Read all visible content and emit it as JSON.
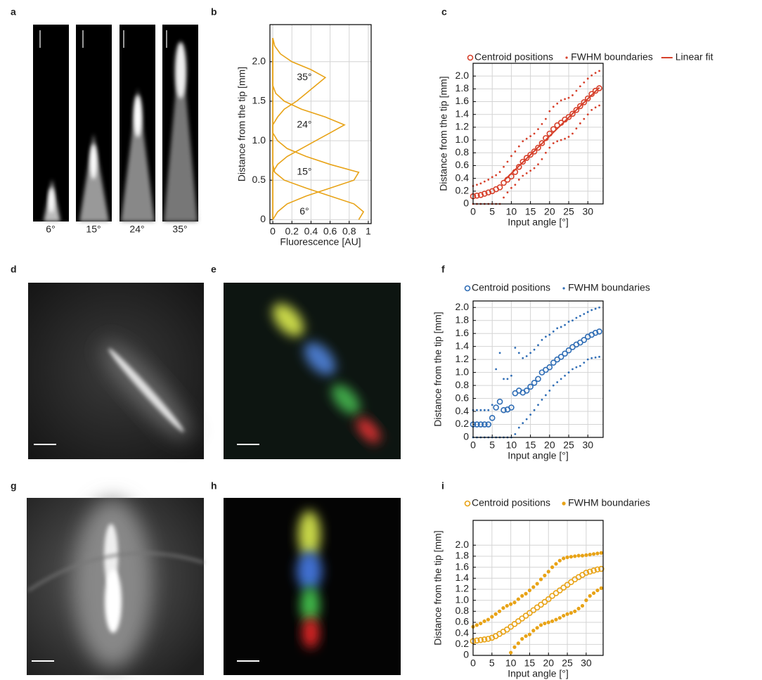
{
  "panel_letters": [
    "a",
    "b",
    "c",
    "d",
    "e",
    "f",
    "g",
    "h",
    "i"
  ],
  "image_strip_labels": [
    "6°",
    "15°",
    "24°",
    "35°"
  ],
  "chart_data": [
    {
      "type": "profile",
      "xlabel": "Fluorescence [AU]",
      "ylabel": "Distance from the tip [mm]",
      "y": [
        0,
        0.1,
        0.2,
        0.3,
        0.4,
        0.5,
        0.6,
        0.7,
        0.8,
        0.9,
        1,
        1.1,
        1.2,
        1.3,
        1.4,
        1.5,
        1.6,
        1.7,
        1.8,
        1.9,
        2,
        2.1,
        2.2,
        2.3
      ],
      "series": [
        {
          "name": "6°",
          "color": "#e8a317",
          "values": [
            0.9,
            0.95,
            0.85,
            0.6,
            0.35,
            0.12,
            0.02,
            0,
            0,
            0,
            0,
            0,
            0,
            0,
            0,
            0,
            0,
            0,
            0,
            0,
            0,
            0,
            0,
            0
          ]
        },
        {
          "name": "15°",
          "color": "#e8a317",
          "values": [
            0,
            0.05,
            0.15,
            0.35,
            0.6,
            0.85,
            0.9,
            0.6,
            0.35,
            0.15,
            0.05,
            0,
            0,
            0,
            0,
            0,
            0,
            0,
            0,
            0,
            0,
            0,
            0,
            0
          ]
        },
        {
          "name": "24°",
          "color": "#e8a317",
          "values": [
            0,
            0,
            0,
            0,
            0,
            0,
            0,
            0.05,
            0.15,
            0.3,
            0.45,
            0.6,
            0.75,
            0.55,
            0.3,
            0.12,
            0.03,
            0,
            0,
            0,
            0,
            0,
            0,
            0
          ]
        },
        {
          "name": "35°",
          "color": "#e8a317",
          "values": [
            0,
            0,
            0,
            0,
            0,
            0,
            0,
            0,
            0,
            0,
            0,
            0,
            0,
            0.05,
            0.12,
            0.25,
            0.35,
            0.45,
            0.55,
            0.4,
            0.2,
            0.08,
            0.02,
            0
          ]
        }
      ],
      "xlim": [
        -0.03,
        1.03
      ],
      "ylim": [
        -0.05,
        2.47
      ],
      "xticks": [
        0,
        0.2,
        0.4,
        0.6,
        0.8,
        1
      ],
      "yticks": [
        0,
        0.5,
        {
          "value": 1,
          "label": "1.0"
        },
        1.5,
        {
          "value": 2,
          "label": "2.0"
        }
      ],
      "grid": true
    },
    {
      "type": "scatter",
      "xlabel": "Input angle [°]",
      "ylabel": "Distance from the tip [mm]",
      "x": [
        0,
        1,
        2,
        3,
        4,
        5,
        6,
        7,
        8,
        9,
        10,
        11,
        12,
        13,
        14,
        15,
        16,
        17,
        18,
        19,
        20,
        21,
        22,
        23,
        24,
        25,
        26,
        27,
        28,
        29,
        30,
        31,
        32,
        33
      ],
      "series": [
        {
          "name": "Centroid positions",
          "color": "#d6402b",
          "marker": "open-circle",
          "values": [
            0.12,
            0.13,
            0.14,
            0.16,
            0.18,
            0.2,
            0.23,
            0.26,
            0.33,
            0.38,
            0.43,
            0.5,
            0.58,
            0.66,
            0.72,
            0.77,
            0.82,
            0.88,
            0.95,
            1.03,
            1.1,
            1.17,
            1.23,
            1.27,
            1.32,
            1.36,
            1.41,
            1.47,
            1.53,
            1.59,
            1.65,
            1.72,
            1.77,
            1.81
          ]
        },
        {
          "name": "FWHM boundaries",
          "color": "#d6402b",
          "marker": "dot",
          "upper": [
            0.28,
            0.3,
            0.32,
            0.35,
            0.38,
            0.42,
            0.45,
            0.5,
            0.58,
            0.66,
            0.75,
            0.82,
            0.9,
            0.98,
            1.02,
            1.06,
            1.1,
            1.17,
            1.25,
            1.33,
            1.45,
            1.52,
            1.57,
            1.62,
            1.64,
            1.66,
            1.7,
            1.77,
            1.84,
            1.9,
            1.96,
            2.01,
            2.05,
            2.08
          ],
          "lower": [
            0,
            0,
            0,
            0,
            0,
            0,
            0,
            0,
            0.1,
            0.18,
            0.25,
            0.3,
            0.38,
            0.44,
            0.48,
            0.52,
            0.56,
            0.62,
            0.7,
            0.8,
            0.88,
            0.95,
            0.98,
            1.0,
            1.02,
            1.05,
            1.1,
            1.18,
            1.26,
            1.33,
            1.4,
            1.47,
            1.51,
            1.54
          ]
        },
        {
          "name": "Linear fit",
          "color": "#d6402b",
          "marker": "line",
          "x": [
            8,
            33
          ],
          "values": [
            0.36,
            1.82
          ]
        }
      ],
      "xlim": [
        0,
        34
      ],
      "ylim": [
        0,
        2.2
      ],
      "xticks": [
        0,
        5,
        10,
        15,
        20,
        25,
        30
      ],
      "yticks": [
        0,
        0.2,
        0.4,
        0.6,
        0.8,
        {
          "value": 1,
          "label": "1.0"
        },
        1.2,
        1.4,
        1.6,
        1.8,
        {
          "value": 2,
          "label": "2.0"
        }
      ],
      "grid": true
    },
    {
      "type": "scatter",
      "xlabel": "Input angle [°]",
      "ylabel": "Distance from the tip [mm]",
      "x": [
        0,
        1,
        2,
        3,
        4,
        5,
        6,
        7,
        8,
        9,
        10,
        11,
        12,
        13,
        14,
        15,
        16,
        17,
        18,
        19,
        20,
        21,
        22,
        23,
        24,
        25,
        26,
        27,
        28,
        29,
        30,
        31,
        32,
        33
      ],
      "series": [
        {
          "name": "Centroid positions",
          "color": "#2f6db5",
          "marker": "open-circle",
          "values": [
            0.2,
            0.2,
            0.2,
            0.2,
            0.2,
            0.3,
            0.46,
            0.55,
            0.42,
            0.43,
            0.46,
            0.68,
            0.72,
            0.69,
            0.72,
            0.78,
            0.84,
            0.9,
            1.0,
            1.04,
            1.08,
            1.15,
            1.2,
            1.24,
            1.29,
            1.34,
            1.39,
            1.43,
            1.46,
            1.5,
            1.55,
            1.58,
            1.61,
            1.63
          ]
        },
        {
          "name": "FWHM boundaries",
          "color": "#2f6db5",
          "marker": "dot",
          "upper": [
            0.42,
            0.42,
            0.42,
            0.42,
            0.42,
            0.5,
            1.05,
            1.3,
            0.9,
            0.9,
            0.95,
            1.38,
            1.3,
            1.22,
            1.25,
            1.3,
            1.35,
            1.42,
            1.5,
            1.55,
            1.58,
            1.63,
            1.68,
            1.7,
            1.73,
            1.78,
            1.8,
            1.84,
            1.87,
            1.9,
            1.93,
            1.96,
            1.98,
            2.0
          ],
          "lower": [
            0,
            0,
            0,
            0,
            0,
            0,
            0,
            0,
            0,
            0,
            0,
            0.05,
            0.15,
            0.22,
            0.28,
            0.35,
            0.42,
            0.5,
            0.58,
            0.65,
            0.72,
            0.8,
            0.85,
            0.9,
            0.95,
            1.0,
            1.05,
            1.08,
            1.1,
            1.15,
            1.2,
            1.22,
            1.23,
            1.24
          ]
        }
      ],
      "xlim": [
        0,
        34
      ],
      "ylim": [
        0,
        2.1
      ],
      "xticks": [
        0,
        5,
        10,
        15,
        20,
        25,
        30
      ],
      "yticks": [
        0,
        0.2,
        0.4,
        0.6,
        0.8,
        {
          "value": 1,
          "label": "1.0"
        },
        1.2,
        1.4,
        1.6,
        1.8,
        {
          "value": 2,
          "label": "2.0"
        }
      ],
      "grid": true
    },
    {
      "type": "scatter",
      "xlabel": "Input angle [°]",
      "ylabel": "Distance from the tip [mm]",
      "x": [
        0,
        1,
        2,
        3,
        4,
        5,
        6,
        7,
        8,
        9,
        10,
        11,
        12,
        13,
        14,
        15,
        16,
        17,
        18,
        19,
        20,
        21,
        22,
        23,
        24,
        25,
        26,
        27,
        28,
        29,
        30,
        31,
        32,
        33,
        34
      ],
      "series": [
        {
          "name": "Centroid positions",
          "color": "#e8a317",
          "marker": "open-circle",
          "values": [
            0.26,
            0.27,
            0.28,
            0.29,
            0.3,
            0.32,
            0.35,
            0.39,
            0.43,
            0.47,
            0.52,
            0.57,
            0.62,
            0.67,
            0.72,
            0.77,
            0.82,
            0.87,
            0.92,
            0.97,
            1.02,
            1.08,
            1.13,
            1.18,
            1.23,
            1.28,
            1.33,
            1.38,
            1.42,
            1.46,
            1.5,
            1.52,
            1.54,
            1.56,
            1.57
          ]
        },
        {
          "name": "FWHM boundaries",
          "color": "#e8a317",
          "marker": "filled-circle",
          "upper": [
            0.52,
            0.55,
            0.58,
            0.62,
            0.65,
            0.7,
            0.75,
            0.8,
            0.86,
            0.9,
            0.93,
            0.96,
            1.02,
            1.08,
            1.12,
            1.18,
            1.24,
            1.3,
            1.38,
            1.45,
            1.52,
            1.6,
            1.66,
            1.72,
            1.76,
            1.78,
            1.79,
            1.8,
            1.81,
            1.81,
            1.82,
            1.83,
            1.84,
            1.85,
            1.86
          ],
          "lower": [
            null,
            null,
            null,
            null,
            null,
            null,
            null,
            null,
            null,
            null,
            0.05,
            0.15,
            0.22,
            0.3,
            0.35,
            0.38,
            0.45,
            0.5,
            0.55,
            0.58,
            0.6,
            0.62,
            0.65,
            0.68,
            0.72,
            0.75,
            0.77,
            0.8,
            0.85,
            0.9,
            1.0,
            1.08,
            1.13,
            1.18,
            1.22
          ]
        }
      ],
      "xlim": [
        0,
        34.5
      ],
      "ylim": [
        0,
        2.45
      ],
      "xticks": [
        0,
        5,
        10,
        15,
        20,
        25,
        30
      ],
      "yticks": [
        0,
        0.2,
        0.4,
        0.6,
        0.8,
        {
          "value": 1,
          "label": "1.0"
        },
        1.2,
        1.4,
        1.6,
        1.8,
        {
          "value": 2,
          "label": "2.0"
        }
      ],
      "grid": true
    }
  ]
}
